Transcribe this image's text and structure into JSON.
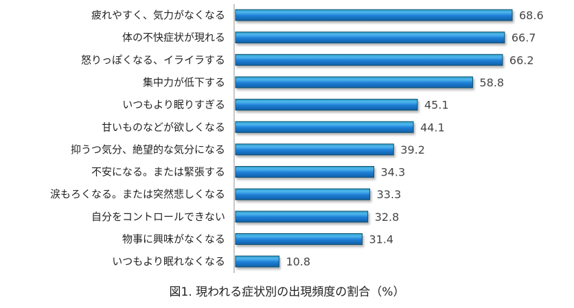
{
  "chart_data": {
    "type": "bar",
    "orientation": "horizontal",
    "title": "図1. 現われる症状別の出現頻度の割合（%）",
    "categories": [
      "疲れやすく、気力がなくなる",
      "体の不快症状が現れる",
      "怒りっぽくなる、イライラする",
      "集中力が低下する",
      "いつもより眠りすぎる",
      "甘いものなどが欲しくなる",
      "抑うつ気分、絶望的な気分になる",
      "不安になる。または緊張する",
      "涙もろくなる。または突然悲しくなる",
      "自分をコントロールできない",
      "物事に興味がなくなる",
      "いつもより眠れなくなる"
    ],
    "values": [
      68.6,
      66.7,
      66.2,
      58.8,
      45.1,
      44.1,
      39.2,
      34.3,
      33.3,
      32.8,
      31.4,
      10.8
    ],
    "value_labels": [
      "68.6",
      "66.7",
      "66.2",
      "58.8",
      "45.1",
      "44.1",
      "39.2",
      "34.3",
      "33.3",
      "32.8",
      "31.4",
      "10.8"
    ],
    "xlim": [
      0,
      70
    ],
    "grid": false,
    "legend": "none",
    "colors": {
      "bar": "#1f7fd6",
      "bar_light": "#5ab4f0",
      "bar_dark": "#0d4f8c",
      "axis": "#c8c8c8"
    }
  }
}
